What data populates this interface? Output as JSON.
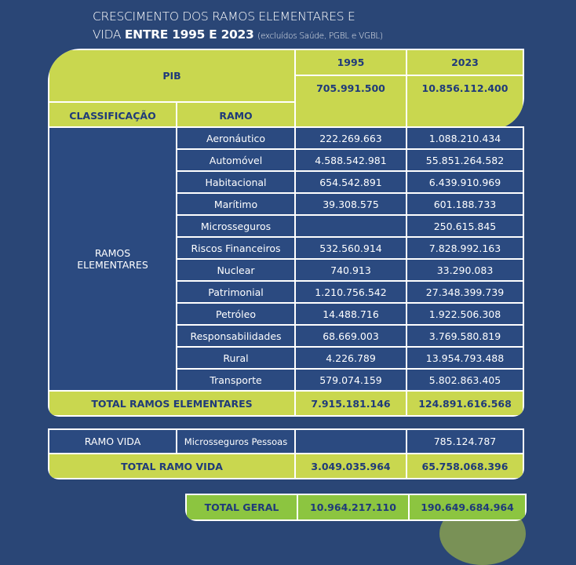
{
  "title": {
    "line1": "CRESCIMENTO DOS RAMOS ELEMENTARES E",
    "line2_prefix": "VIDA",
    "line2_bold": "ENTRE 1995 E 2023",
    "line2_note": "(excluídos Saúde, PGBL e VGBL)"
  },
  "header": {
    "pib_label": "PIB",
    "year1": "1995",
    "year2": "2023",
    "pib_1995": "705.991.500",
    "pib_2023": "10.856.112.400",
    "col_classificacao": "CLASSIFICAÇÃO",
    "col_ramo": "RAMO"
  },
  "elementares": {
    "label": "RAMOS ELEMENTARES",
    "rows": [
      {
        "ramo": "Aeronáutico",
        "v1995": "222.269.663",
        "v2023": "1.088.210.434"
      },
      {
        "ramo": "Automóvel",
        "v1995": "4.588.542.981",
        "v2023": "55.851.264.582"
      },
      {
        "ramo": "Habitacional",
        "v1995": "654.542.891",
        "v2023": "6.439.910.969"
      },
      {
        "ramo": "Marítimo",
        "v1995": "39.308.575",
        "v2023": "601.188.733"
      },
      {
        "ramo": "Microsseguros",
        "v1995": "",
        "v2023": "250.615.845"
      },
      {
        "ramo": "Riscos Financeiros",
        "v1995": "532.560.914",
        "v2023": "7.828.992.163"
      },
      {
        "ramo": "Nuclear",
        "v1995": "740.913",
        "v2023": "33.290.083"
      },
      {
        "ramo": "Patrimonial",
        "v1995": "1.210.756.542",
        "v2023": "27.348.399.739"
      },
      {
        "ramo": "Petróleo",
        "v1995": "14.488.716",
        "v2023": "1.922.506.308"
      },
      {
        "ramo": "Responsabilidades",
        "v1995": "68.669.003",
        "v2023": "3.769.580.819"
      },
      {
        "ramo": "Rural",
        "v1995": "4.226.789",
        "v2023": "13.954.793.488"
      },
      {
        "ramo": "Transporte",
        "v1995": "579.074.159",
        "v2023": "5.802.863.405"
      }
    ],
    "total_label": "TOTAL RAMOS ELEMENTARES",
    "total_1995": "7.915.181.146",
    "total_2023": "124.891.616.568"
  },
  "vida": {
    "label": "RAMO VIDA",
    "ramo": "Microsseguros Pessoas",
    "v1995": "",
    "v2023": "785.124.787",
    "total_label": "TOTAL RAMO VIDA",
    "total_1995": "3.049.035.964",
    "total_2023": "65.758.068.396"
  },
  "geral": {
    "label": "TOTAL GERAL",
    "v1995": "10.964.217.110",
    "v2023": "190.649.684.964"
  },
  "colors": {
    "background": "#2a4676",
    "lime": "#c9d74f",
    "green": "#8cc540",
    "text_dark": "#1f3a7a"
  }
}
